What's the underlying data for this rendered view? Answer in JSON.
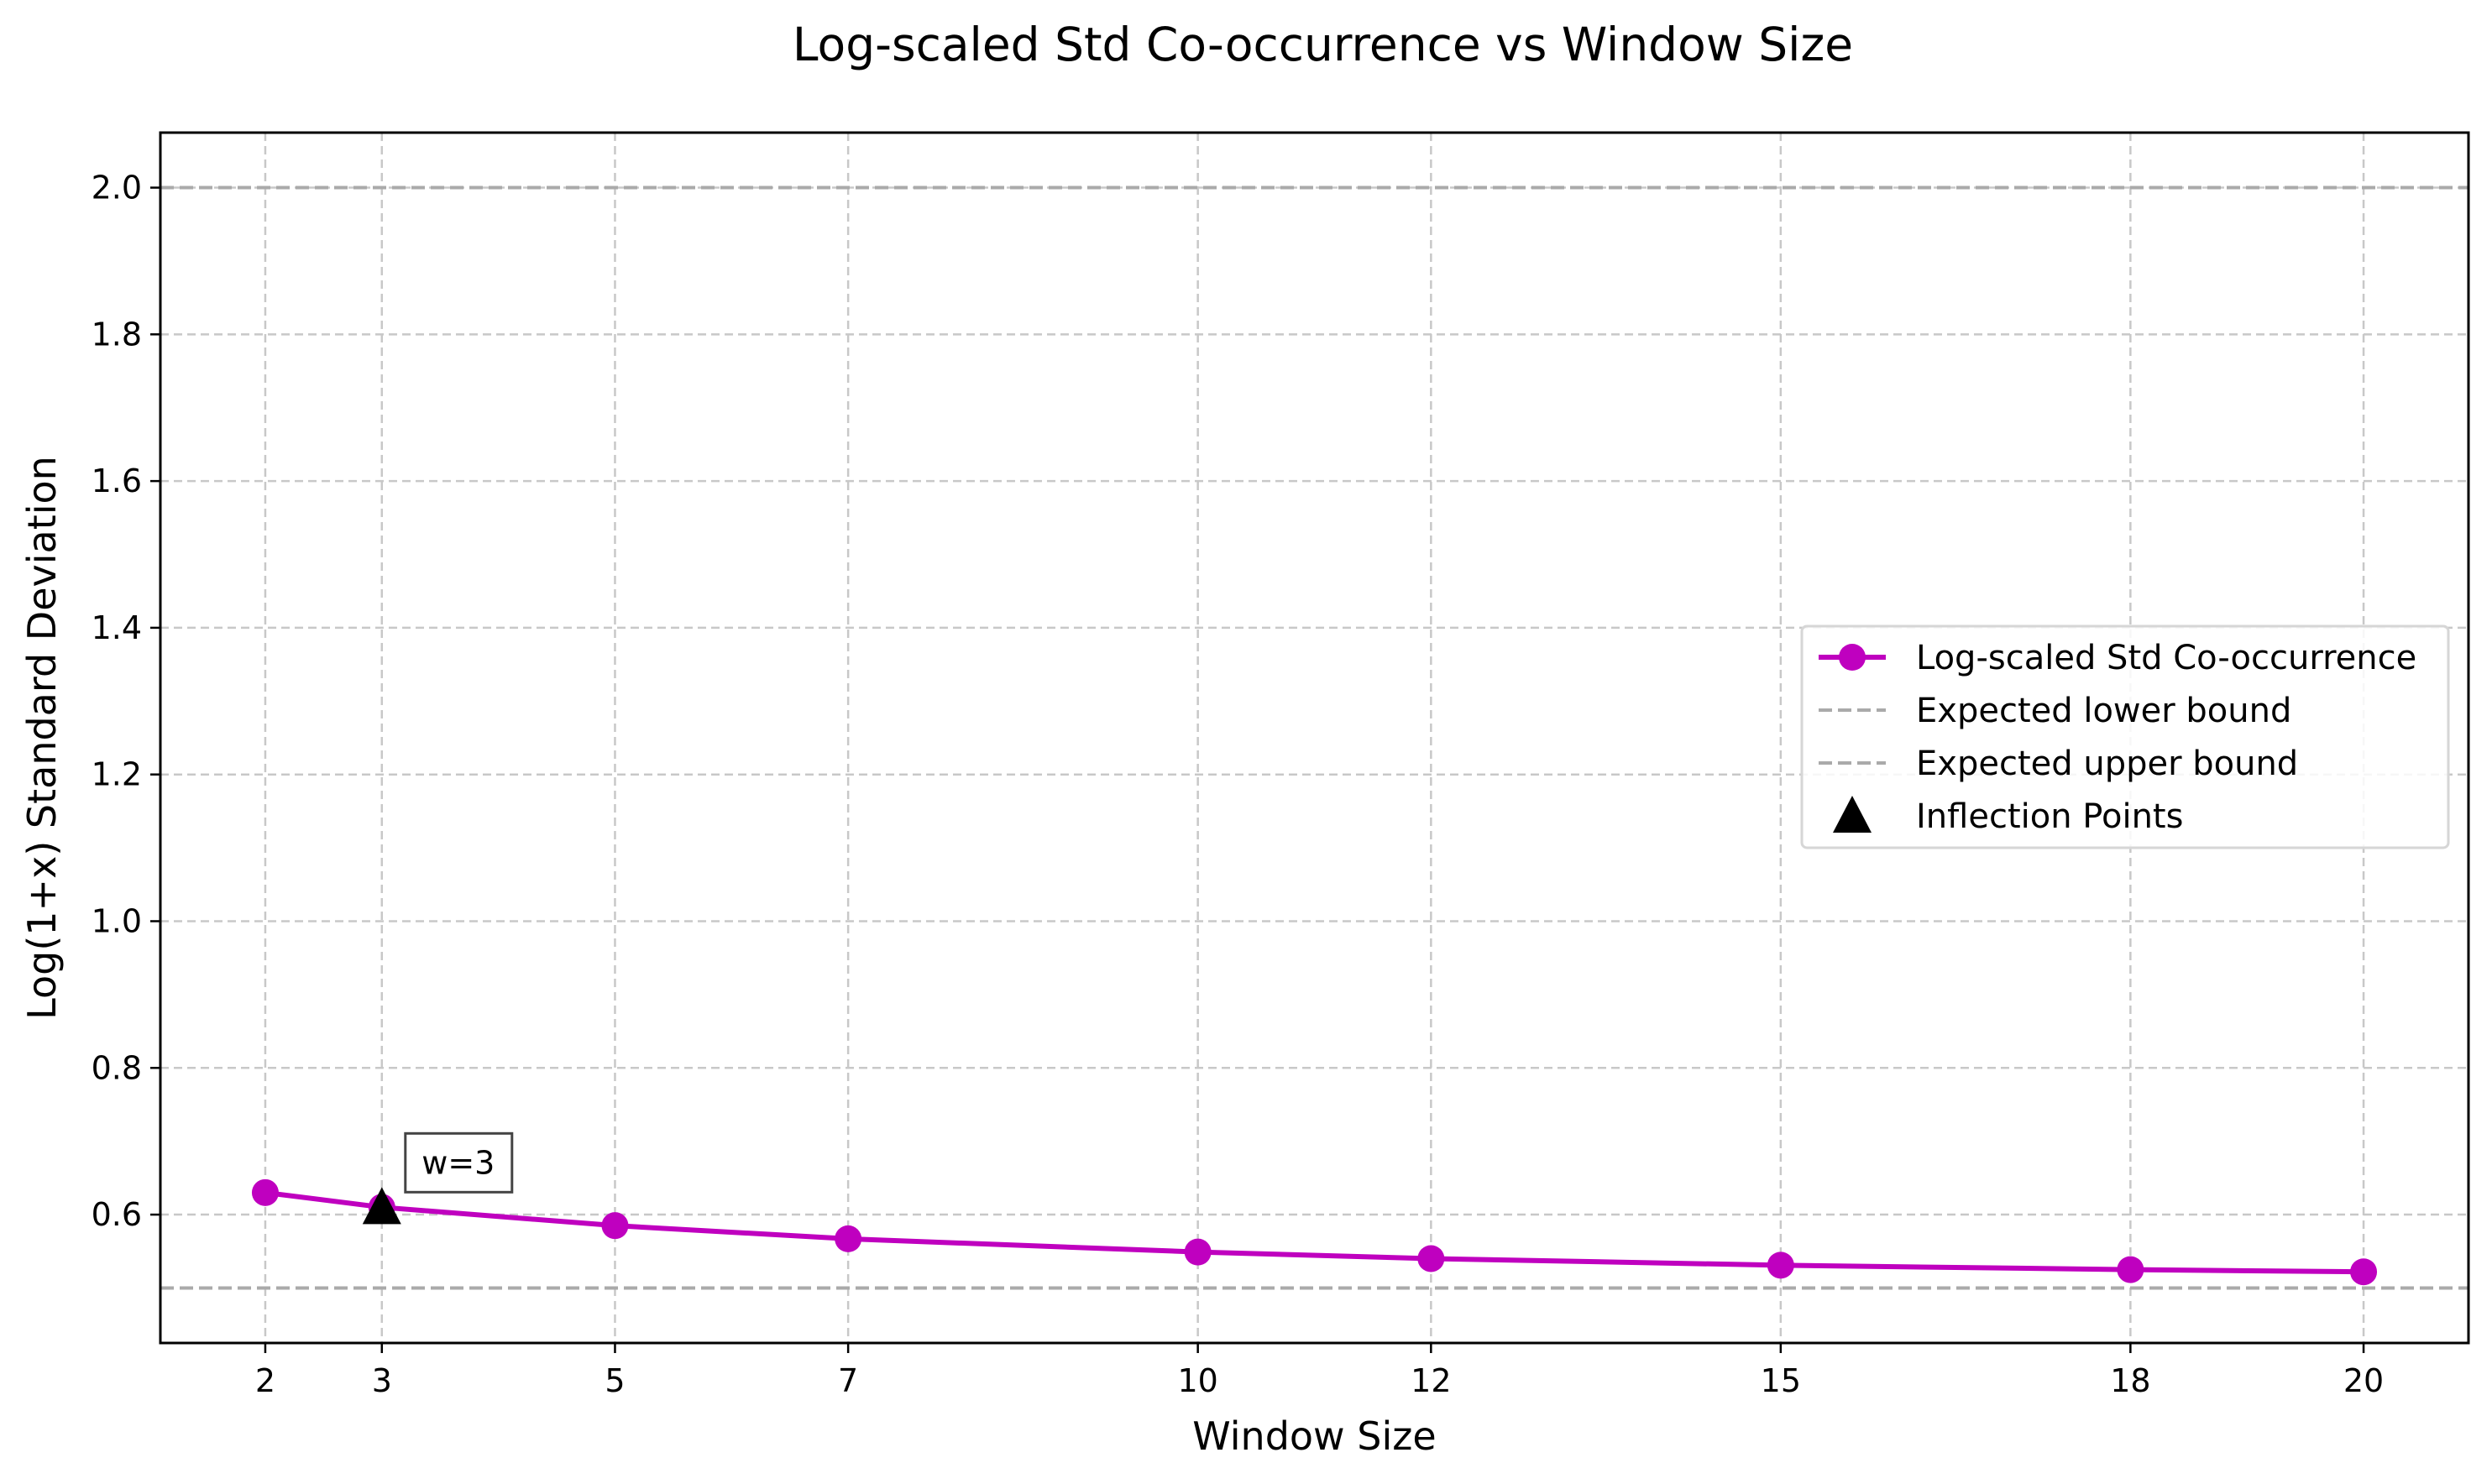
{
  "chart_data": {
    "type": "line",
    "title": "Log-scaled Std Co-occurrence vs Window Size",
    "xlabel": "Window Size",
    "ylabel": "Log(1+x) Standard Deviation",
    "xlim": [
      1.1,
      20.9
    ],
    "ylim": [
      0.425,
      2.075
    ],
    "x_ticks": [
      2,
      3,
      5,
      7,
      10,
      12,
      15,
      18,
      20
    ],
    "y_ticks": [
      0.6,
      0.8,
      1.0,
      1.2,
      1.4,
      1.6,
      1.8,
      2.0
    ],
    "y_tick_labels": [
      "0.6",
      "0.8",
      "1.0",
      "1.2",
      "1.4",
      "1.6",
      "1.8",
      "2.0"
    ],
    "grid": true,
    "legend_position": "center-right",
    "series": [
      {
        "name": "Log-scaled Std Co-occurrence",
        "color": "#bf00bf",
        "marker": "circle",
        "x": [
          2,
          3,
          5,
          7,
          10,
          12,
          15,
          18,
          20
        ],
        "values": [
          0.63,
          0.61,
          0.585,
          0.567,
          0.549,
          0.54,
          0.531,
          0.525,
          0.522
        ]
      }
    ],
    "reference_lines": [
      {
        "name": "Expected lower bound",
        "y": 0.5,
        "color": "#aaaaaa",
        "style": "dashed"
      },
      {
        "name": "Expected upper bound",
        "y": 2.0,
        "color": "#aaaaaa",
        "style": "dashed"
      }
    ],
    "markers": [
      {
        "name": "Inflection Points",
        "x": 3,
        "y": 0.61,
        "color": "#000000",
        "marker": "triangle"
      }
    ],
    "annotations": [
      {
        "text": "w=3",
        "x": 3,
        "y": 0.61
      }
    ]
  }
}
